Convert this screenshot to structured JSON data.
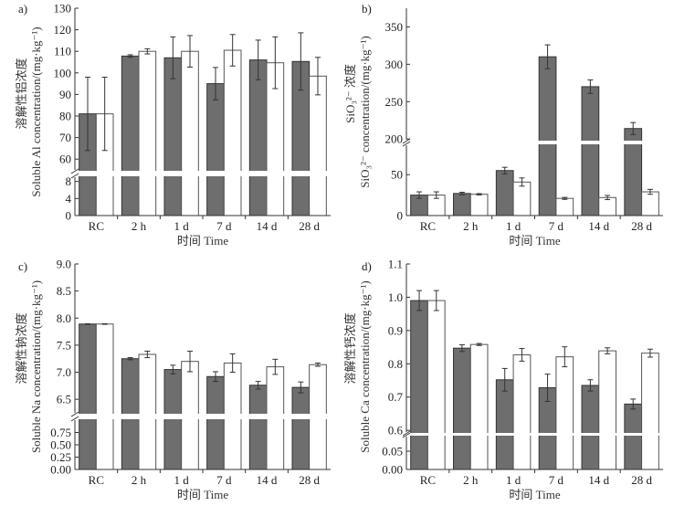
{
  "chart_data": [
    {
      "type": "bar",
      "panel": "a)",
      "title": "",
      "xlabel": "时间 Time",
      "ylabel_cn": "溶解性铝浓度",
      "ylabel_en": "Soluble Al concentration/(mg·kg⁻¹)",
      "categories": [
        "RC",
        "2 h",
        "1 d",
        "7 d",
        "14 d",
        "28 d"
      ],
      "series": [
        {
          "name": "dark",
          "color": "#6b6b6b",
          "values": [
            81,
            107.8,
            107,
            95,
            106,
            105.3
          ],
          "errors": [
            17,
            0.6,
            9.7,
            7.5,
            9.2,
            13.3
          ]
        },
        {
          "name": "white",
          "color": "#ffffff",
          "values": [
            81,
            110,
            110,
            110.5,
            104.7,
            98.5
          ],
          "errors": [
            17,
            1.2,
            7.3,
            7.3,
            12,
            8.7
          ]
        }
      ],
      "ylim_upper": [
        55,
        130
      ],
      "ylim_lower": [
        0,
        9
      ],
      "yticks_upper": [
        "60",
        "70",
        "80",
        "90",
        "100",
        "110",
        "120",
        "130"
      ],
      "yticks_lower": [
        "0",
        "4",
        "8"
      ],
      "axis_break": true,
      "grid": false
    },
    {
      "type": "bar",
      "panel": "b)",
      "title": "",
      "xlabel": "时间 Time",
      "ylabel_cn": "SiO₃²⁻ 浓度",
      "ylabel_en": "SiO₃²⁻ concentration/(mg·kg⁻¹)",
      "categories": [
        "RC",
        "2 h",
        "1 d",
        "7 d",
        "14 d",
        "28 d"
      ],
      "series": [
        {
          "name": "dark",
          "color": "#6b6b6b",
          "values": [
            25,
            27,
            55,
            310,
            270,
            214
          ],
          "errors": [
            4,
            1.5,
            4,
            16,
            9,
            8
          ]
        },
        {
          "name": "white",
          "color": "#ffffff",
          "values": [
            25,
            26,
            41,
            21,
            22,
            29
          ],
          "errors": [
            4,
            0.8,
            5,
            1.2,
            2.5,
            3
          ]
        }
      ],
      "ylim_upper": [
        199,
        375
      ],
      "ylim_lower": [
        0,
        86
      ],
      "yticks_upper": [
        "200",
        "250",
        "300",
        "350"
      ],
      "yticks_lower": [
        "0",
        "50"
      ],
      "axis_break": true,
      "grid": false
    },
    {
      "type": "bar",
      "panel": "c)",
      "title": "",
      "xlabel": "时间 Time",
      "ylabel_cn": "溶解性钠浓度",
      "ylabel_en": "Soluble Na concentration/(mg·kg⁻¹)",
      "categories": [
        "RC",
        "2 h",
        "1 d",
        "7 d",
        "14 d",
        "28 d"
      ],
      "series": [
        {
          "name": "dark",
          "color": "#6b6b6b",
          "values": [
            7.89,
            7.25,
            7.05,
            6.92,
            6.76,
            6.72
          ],
          "errors": [
            0.005,
            0.02,
            0.08,
            0.09,
            0.07,
            0.1
          ]
        },
        {
          "name": "white",
          "color": "#ffffff",
          "values": [
            7.89,
            7.33,
            7.2,
            7.17,
            7.1,
            7.14
          ],
          "errors": [
            0.005,
            0.06,
            0.19,
            0.17,
            0.14,
            0.03
          ]
        }
      ],
      "ylim_upper": [
        6.25,
        9.0
      ],
      "ylim_lower": [
        0,
        1.0
      ],
      "yticks_upper": [
        "6.5",
        "7.0",
        "7.5",
        "8.0",
        "8.5",
        "9.0"
      ],
      "yticks_lower": [
        "0.00",
        "0.25",
        "0.50",
        "0.75"
      ],
      "axis_break": true,
      "grid": false
    },
    {
      "type": "bar",
      "panel": "d)",
      "title": "",
      "xlabel": "时间 Time",
      "ylabel_cn": "溶解性钙浓度",
      "ylabel_en": "Soluble Ca concentration/(mg·kg⁻¹)",
      "categories": [
        "RC",
        "2 h",
        "1 d",
        "7 d",
        "14 d",
        "28 d"
      ],
      "series": [
        {
          "name": "dark",
          "color": "#6b6b6b",
          "values": [
            0.99,
            0.847,
            0.752,
            0.728,
            0.735,
            0.679
          ],
          "errors": [
            0.03,
            0.01,
            0.034,
            0.041,
            0.017,
            0.015
          ]
        },
        {
          "name": "white",
          "color": "#ffffff",
          "values": [
            0.99,
            0.858,
            0.827,
            0.821,
            0.839,
            0.832
          ],
          "errors": [
            0.03,
            0.003,
            0.019,
            0.03,
            0.009,
            0.012
          ]
        }
      ],
      "ylim_upper": [
        0.595,
        1.1
      ],
      "ylim_lower": [
        0,
        0.09
      ],
      "yticks_upper": [
        "0.6",
        "0.7",
        "0.8",
        "0.9",
        "1.0",
        "1.1"
      ],
      "yticks_lower": [
        "0.00",
        "0.05"
      ],
      "axis_break": true,
      "grid": false
    }
  ]
}
